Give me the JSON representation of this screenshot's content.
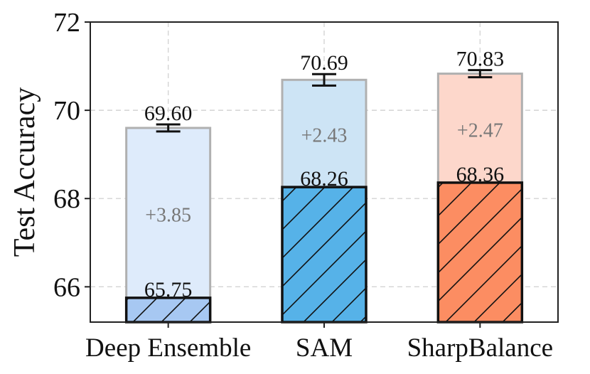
{
  "chart_data": {
    "type": "bar",
    "ylabel": "Test Accuracy",
    "xlabel": "",
    "ylim": [
      65.2,
      72
    ],
    "yticks": [
      66,
      68,
      70,
      72
    ],
    "grid": true,
    "categories": [
      "Deep Ensemble",
      "SAM",
      "SharpBalance"
    ],
    "series": [
      {
        "name": "base",
        "values": [
          65.75,
          68.26,
          68.36
        ],
        "labels": [
          "65.75",
          "68.26",
          "68.36"
        ]
      },
      {
        "name": "ensemble",
        "values": [
          69.6,
          70.69,
          70.83
        ],
        "labels": [
          "69.60",
          "70.69",
          "70.83"
        ],
        "error": [
          0.08,
          0.13,
          0.08
        ]
      }
    ],
    "deltas": [
      "+3.85",
      "+2.43",
      "+2.47"
    ],
    "colors": {
      "base": [
        "#a7c8f2",
        "#56b2e8",
        "#fc8d62"
      ],
      "top": [
        "#deebfb",
        "#cde4f5",
        "#fdd7cb"
      ]
    }
  }
}
